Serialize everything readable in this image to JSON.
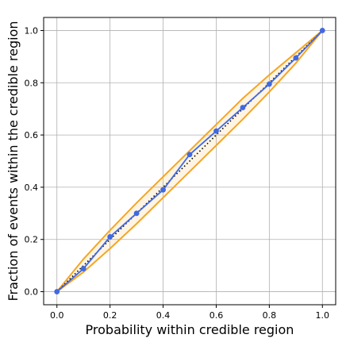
{
  "chart_data": {
    "type": "line",
    "title": "",
    "xlabel": "Probability within credible region",
    "ylabel": "Fraction of events within the credible region",
    "xlim": [
      -0.05,
      1.05
    ],
    "ylim": [
      -0.05,
      1.05
    ],
    "xticks": [
      "0.0",
      "0.2",
      "0.4",
      "0.6",
      "0.8",
      "1.0"
    ],
    "yticks": [
      "0.0",
      "0.2",
      "0.4",
      "0.6",
      "0.8",
      "1.0"
    ],
    "grid": true,
    "colors": {
      "band": "#f5a623",
      "series": "#4169e1",
      "diagonal": "#000000",
      "grid": "#b0b0b0"
    },
    "confidence_band": {
      "x": [
        0,
        0.1,
        0.2,
        0.3,
        0.4,
        0.5,
        0.6,
        0.7,
        0.8,
        0.9,
        1.0
      ],
      "upper": [
        0,
        0.125,
        0.235,
        0.34,
        0.44,
        0.54,
        0.64,
        0.74,
        0.83,
        0.915,
        1.0
      ],
      "lower": [
        0,
        0.075,
        0.165,
        0.26,
        0.36,
        0.46,
        0.56,
        0.66,
        0.765,
        0.875,
        1.0
      ]
    },
    "series": [
      {
        "x": [
          0,
          0.1,
          0.2,
          0.3,
          0.4,
          0.5,
          0.6,
          0.7,
          0.8,
          0.9,
          1.0
        ],
        "values": [
          0,
          0.088,
          0.21,
          0.3,
          0.39,
          0.525,
          0.615,
          0.705,
          0.795,
          0.895,
          1.0
        ]
      }
    ],
    "diagonal": {
      "x": [
        0,
        1
      ],
      "y": [
        0,
        1
      ]
    }
  }
}
